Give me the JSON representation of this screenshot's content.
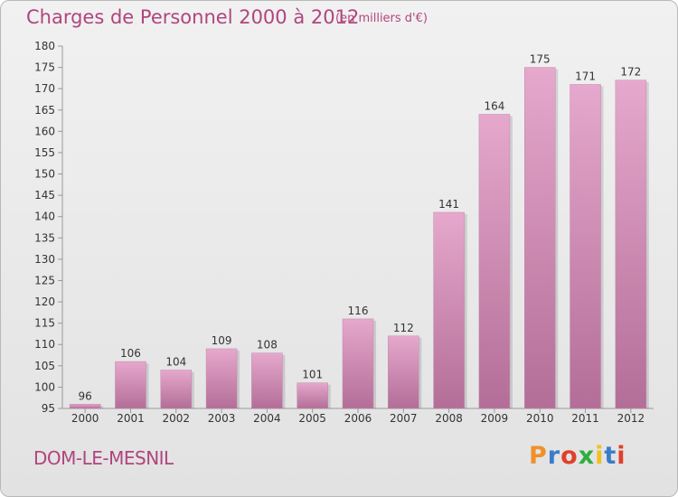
{
  "header": {
    "title": "Charges de Personnel 2000 à 2012",
    "subtitle": "(en milliers d'€)"
  },
  "footer": {
    "commune": "DOM-LE-MESNIL",
    "logo": "Proxiti"
  },
  "colors": {
    "title": "#b0457e",
    "bar_top": "#e6a8cd",
    "bar_bottom": "#b36e97",
    "logo_letters": [
      "#f0902a",
      "#3a7cc9",
      "#e0402a",
      "#2fae3f",
      "#f0c020",
      "#3a7cc9",
      "#e0402a"
    ]
  },
  "chart_data": {
    "type": "bar",
    "categories": [
      "2000",
      "2001",
      "2002",
      "2003",
      "2004",
      "2005",
      "2006",
      "2007",
      "2008",
      "2009",
      "2010",
      "2011",
      "2012"
    ],
    "values": [
      96,
      106,
      104,
      109,
      108,
      101,
      116,
      112,
      141,
      164,
      175,
      171,
      172
    ],
    "ylim": [
      95,
      180
    ],
    "yticks": [
      95,
      100,
      105,
      110,
      115,
      120,
      125,
      130,
      135,
      140,
      145,
      150,
      155,
      160,
      165,
      170,
      175,
      180
    ],
    "grid": false,
    "legend": "none"
  }
}
